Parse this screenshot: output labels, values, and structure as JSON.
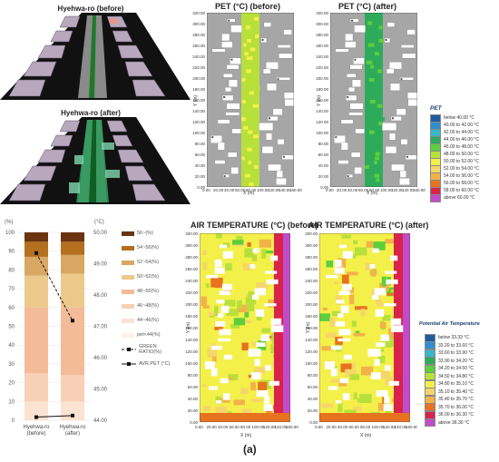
{
  "figure_label": "(a)",
  "views3d": {
    "before_title": "Hyehwa-ro (before)",
    "after_title": "Hyehwa-ro (after)"
  },
  "pet_maps": {
    "before_title": "PET (°C) (before)",
    "after_title": "PET (°C) (after)",
    "y_ticks": [
      "0.00",
      "20.00",
      "40.00",
      "60.00",
      "80.00",
      "100.00",
      "120.00",
      "140.00",
      "160.00",
      "180.00",
      "200.00",
      "220.00",
      "240.00",
      "260.00",
      "280.00",
      "300.00",
      "320.00"
    ],
    "x_ticks_before": [
      "0.00",
      "20.00",
      "40.00",
      "60.00",
      "80.00",
      "100.00",
      "120.00",
      "140.00",
      "160.00"
    ],
    "x_ticks_after": [
      "0.00",
      "20.00",
      "40.00",
      "60.00",
      "80.00",
      "100.00",
      "120.00",
      "140.00",
      "160.00"
    ],
    "x_axis": "X (m)",
    "y_axis": "Y (m)",
    "legend_title": "PET",
    "legend": [
      {
        "label": "below 40.00 °C",
        "color": "#1f5c9e"
      },
      {
        "label": "40.00 to 42.00 °C",
        "color": "#2f8fd0"
      },
      {
        "label": "42.00 to 44.00 °C",
        "color": "#3ab7c8"
      },
      {
        "label": "44.00 to 46.00 °C",
        "color": "#2eab5a"
      },
      {
        "label": "46.00 to 48.00 °C",
        "color": "#5ccf3a"
      },
      {
        "label": "48.00 to 50.00 °C",
        "color": "#b7e03a"
      },
      {
        "label": "50.00 to 52.00 °C",
        "color": "#f4f04a"
      },
      {
        "label": "52.00 to 54.00 °C",
        "color": "#f6d66a"
      },
      {
        "label": "54.00 to 56.00 °C",
        "color": "#f3b24a"
      },
      {
        "label": "56.00 to 58.00 °C",
        "color": "#e8731f"
      },
      {
        "label": "58.00 to 60.00 °C",
        "color": "#d9234b"
      },
      {
        "label": "above 60.00 °C",
        "color": "#c04cc8"
      }
    ]
  },
  "air_maps": {
    "before_title": "AIR TEMPERATURE (°C) (before)",
    "after_title": "AIR TEMPERATURE (°C) (after)",
    "y_ticks": [
      "0.00",
      "20.00",
      "40.00",
      "60.00",
      "80.00",
      "100.00",
      "120.00",
      "140.00",
      "160.00",
      "180.00",
      "200.00",
      "220.00",
      "240.00",
      "260.00",
      "280.00",
      "300.00",
      "320.00"
    ],
    "x_ticks": [
      "0.00",
      "20.00",
      "40.00",
      "60.00",
      "80.00",
      "100.00",
      "120.00",
      "140.00",
      "160.00"
    ],
    "x_axis": "X (m)",
    "y_axis": "Y (m)",
    "legend_title": "Potential Air Temperature",
    "legend": [
      {
        "label": "below 33.33 °C",
        "color": "#1f5c9e"
      },
      {
        "label": "33.20 to 33.60 °C",
        "color": "#2f8fd0"
      },
      {
        "label": "33.60 to 33.90 °C",
        "color": "#3ab7c8"
      },
      {
        "label": "33.90 to 34.20 °C",
        "color": "#2eab5a"
      },
      {
        "label": "34.20 to 34.50 °C",
        "color": "#5ccf3a"
      },
      {
        "label": "34.50 to 34.80 °C",
        "color": "#b7e03a"
      },
      {
        "label": "34.80 to 35.10 °C",
        "color": "#f4f04a"
      },
      {
        "label": "35.10 to 35.40 °C",
        "color": "#f6d66a"
      },
      {
        "label": "35.40 to 35.70 °C",
        "color": "#f3b24a"
      },
      {
        "label": "35.70 to 36.00 °C",
        "color": "#e8731f"
      },
      {
        "label": "36.00 to 36.30 °C",
        "color": "#d9234b"
      },
      {
        "label": "above 36.30 °C",
        "color": "#c04cc8"
      }
    ]
  },
  "chart_data": {
    "type": "bar",
    "stacked": true,
    "categories": [
      "Hyehwa-ro\n(before)",
      "Hyehwa-ro\n(after)"
    ],
    "y_left": {
      "label": "(%)",
      "ticks": [
        "0",
        "10",
        "20",
        "30",
        "40",
        "50",
        "60",
        "70",
        "80",
        "90",
        "100"
      ],
      "ylim": [
        0,
        100
      ]
    },
    "y_right": {
      "label": "(°C)",
      "ticks": [
        "44.00",
        "45.00",
        "46.00",
        "47.00",
        "48.00",
        "49.00",
        "50.00"
      ],
      "ylim": [
        44,
        50
      ]
    },
    "series": [
      {
        "name": "pet<44(%)",
        "color": "#fdf1e8",
        "values": [
          0,
          0
        ]
      },
      {
        "name": "44~46(%)",
        "color": "#fbe3d2",
        "values": [
          10,
          10
        ]
      },
      {
        "name": "46~48(%)",
        "color": "#f8d0b6",
        "values": [
          15,
          14
        ]
      },
      {
        "name": "48~50(%)",
        "color": "#f3bb97",
        "values": [
          35,
          36
        ]
      },
      {
        "name": "50~52(%)",
        "color": "#ecc98a",
        "values": [
          17,
          18
        ]
      },
      {
        "name": "52~54(%)",
        "color": "#d8a762",
        "values": [
          10,
          10
        ]
      },
      {
        "name": "54~56(%)",
        "color": "#b46f1f",
        "values": [
          8,
          7
        ]
      },
      {
        "name": "56~(%)",
        "color": "#6b3410",
        "values": [
          5,
          5
        ]
      }
    ],
    "lines": [
      {
        "name": "GREEN RATIO(%)",
        "axis": "left",
        "style": "dashed",
        "values": [
          89,
          53
        ]
      },
      {
        "name": "AVR.PET (°C)",
        "axis": "right",
        "style": "solid",
        "values": [
          44.1,
          44.15
        ]
      }
    ]
  }
}
